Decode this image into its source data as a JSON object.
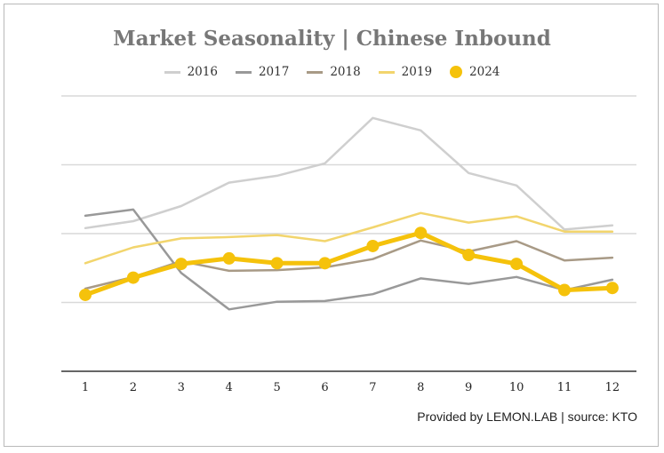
{
  "chart_data": {
    "type": "line",
    "title": "Market Seasonality | Chinese Inbound",
    "footer": "Provided by LEMON.LAB | source: KTO",
    "categories": [
      "1",
      "2",
      "3",
      "4",
      "5",
      "6",
      "7",
      "8",
      "9",
      "10",
      "11",
      "12"
    ],
    "ylim": [
      0,
      400
    ],
    "gridlines": [
      100,
      200,
      300,
      400
    ],
    "grid": true,
    "legend_position": "top-center",
    "series": [
      {
        "name": "2016",
        "color": "#cfcfcf",
        "width": 2.5,
        "markers": false,
        "values": [
          208,
          218,
          240,
          274,
          284,
          302,
          368,
          350,
          288,
          270,
          206,
          212
        ]
      },
      {
        "name": "2017",
        "color": "#999999",
        "width": 2.5,
        "markers": false,
        "values": [
          226,
          235,
          143,
          90,
          101,
          102,
          112,
          135,
          127,
          137,
          118,
          133
        ]
      },
      {
        "name": "2018",
        "color": "#a89a86",
        "width": 2.5,
        "markers": false,
        "values": [
          120,
          137,
          160,
          146,
          147,
          151,
          163,
          190,
          174,
          189,
          161,
          165
        ]
      },
      {
        "name": "2019",
        "color": "#f2d56d",
        "width": 2.5,
        "markers": false,
        "values": [
          157,
          180,
          193,
          195,
          198,
          189,
          209,
          230,
          216,
          225,
          203,
          203
        ]
      },
      {
        "name": "2024",
        "color": "#f5c20b",
        "width": 5,
        "markers": true,
        "values": [
          111,
          136,
          156,
          164,
          157,
          157,
          182,
          201,
          169,
          156,
          118,
          121
        ]
      }
    ]
  }
}
